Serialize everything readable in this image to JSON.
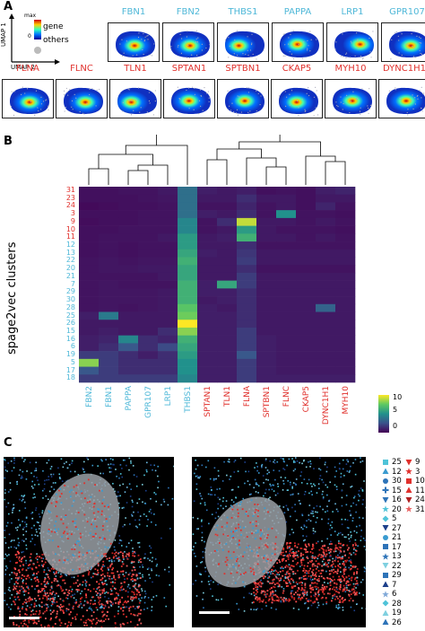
{
  "panel_a": {
    "letter": "A",
    "umap1": "UMAP 1",
    "umap2": "UMAP 2",
    "cb_max": "max",
    "cb_min": "0",
    "legend_gene": "gene",
    "legend_others": "others",
    "row1": [
      {
        "name": "FBN1",
        "color": "#4fb8d8",
        "hot": [
          0.48,
          0.55
        ]
      },
      {
        "name": "FBN2",
        "color": "#4fb8d8",
        "hot": [
          0.5,
          0.55
        ]
      },
      {
        "name": "THBS1",
        "color": "#4fb8d8",
        "hot": [
          0.35,
          0.55
        ]
      },
      {
        "name": "PAPPA",
        "color": "#4fb8d8",
        "hot": [
          0.45,
          0.5
        ]
      },
      {
        "name": "LRP1",
        "color": "#4fb8d8",
        "hot": [
          0.65,
          0.5
        ]
      },
      {
        "name": "GPR107",
        "color": "#4fb8d8",
        "hot": [
          0.55,
          0.55
        ]
      }
    ],
    "row2": [
      {
        "name": "FLNA",
        "color": "#e0302c",
        "hot": [
          0.5,
          0.55
        ]
      },
      {
        "name": "FLNC",
        "color": "#e0302c",
        "hot": [
          0.55,
          0.55
        ]
      },
      {
        "name": "TLN1",
        "color": "#e0302c",
        "hot": [
          0.35,
          0.55
        ]
      },
      {
        "name": "SPTAN1",
        "color": "#e0302c",
        "hot": [
          0.45,
          0.5
        ]
      },
      {
        "name": "SPTBN1",
        "color": "#e0302c",
        "hot": [
          0.5,
          0.5
        ]
      },
      {
        "name": "CKAP5",
        "color": "#e0302c",
        "hot": [
          0.45,
          0.55
        ]
      },
      {
        "name": "MYH10",
        "color": "#e0302c",
        "hot": [
          0.5,
          0.5
        ]
      },
      {
        "name": "DYNC1H1",
        "color": "#e0302c",
        "hot": [
          0.5,
          0.5
        ]
      }
    ]
  },
  "panel_b": {
    "letter": "B",
    "ylabel": "spage2vec clusters",
    "colorbar_ticks": [
      "10",
      "5",
      "0"
    ],
    "chart_data": {
      "type": "heatmap",
      "columns": [
        {
          "name": "FBN2",
          "group": "cyan"
        },
        {
          "name": "FBN1",
          "group": "cyan"
        },
        {
          "name": "PAPPA",
          "group": "cyan"
        },
        {
          "name": "GPR107",
          "group": "cyan"
        },
        {
          "name": "LRP1",
          "group": "cyan"
        },
        {
          "name": "THBS1",
          "group": "cyan"
        },
        {
          "name": "SPTAN1",
          "group": "red"
        },
        {
          "name": "TLN1",
          "group": "red"
        },
        {
          "name": "FLNA",
          "group": "red"
        },
        {
          "name": "SPTBN1",
          "group": "red"
        },
        {
          "name": "FLNC",
          "group": "red"
        },
        {
          "name": "CKAP5",
          "group": "red"
        },
        {
          "name": "DYNC1H1",
          "group": "red"
        },
        {
          "name": "MYH10",
          "group": "red"
        }
      ],
      "rows": [
        {
          "name": "31",
          "group": "red"
        },
        {
          "name": "23",
          "group": "red"
        },
        {
          "name": "24",
          "group": "red"
        },
        {
          "name": "3",
          "group": "red"
        },
        {
          "name": "9",
          "group": "red"
        },
        {
          "name": "10",
          "group": "red"
        },
        {
          "name": "11",
          "group": "red"
        },
        {
          "name": "12",
          "group": "cyan"
        },
        {
          "name": "13",
          "group": "cyan"
        },
        {
          "name": "22",
          "group": "cyan"
        },
        {
          "name": "20",
          "group": "cyan"
        },
        {
          "name": "21",
          "group": "cyan"
        },
        {
          "name": "7",
          "group": "cyan"
        },
        {
          "name": "29",
          "group": "cyan"
        },
        {
          "name": "30",
          "group": "cyan"
        },
        {
          "name": "28",
          "group": "cyan"
        },
        {
          "name": "25",
          "group": "cyan"
        },
        {
          "name": "26",
          "group": "cyan"
        },
        {
          "name": "15",
          "group": "cyan"
        },
        {
          "name": "16",
          "group": "cyan"
        },
        {
          "name": "6",
          "group": "cyan"
        },
        {
          "name": "19",
          "group": "cyan"
        },
        {
          "name": "5",
          "group": "cyan"
        },
        {
          "name": "17",
          "group": "cyan"
        },
        {
          "name": "18",
          "group": "cyan"
        }
      ],
      "values": [
        [
          0.5,
          0.5,
          0.6,
          0.6,
          0.8,
          4.0,
          1.0,
          0.8,
          1.0,
          0.5,
          0.6,
          0.5,
          1.0,
          1.2
        ],
        [
          0.5,
          0.5,
          0.5,
          0.6,
          0.7,
          4.0,
          0.8,
          0.8,
          1.5,
          0.8,
          0.8,
          0.5,
          0.8,
          0.8
        ],
        [
          0.3,
          0.4,
          0.5,
          0.5,
          0.6,
          4.0,
          0.6,
          0.6,
          1.2,
          0.6,
          0.8,
          0.5,
          1.2,
          0.6
        ],
        [
          0.5,
          0.5,
          0.5,
          0.6,
          0.6,
          4.0,
          1.0,
          0.8,
          1.5,
          0.6,
          5.5,
          0.6,
          0.6,
          0.5
        ],
        [
          0.4,
          0.5,
          0.5,
          0.6,
          0.6,
          5.0,
          0.6,
          1.5,
          10.0,
          0.8,
          0.8,
          0.6,
          0.8,
          0.6
        ],
        [
          0.5,
          0.5,
          0.6,
          0.6,
          0.6,
          5.0,
          0.6,
          0.8,
          6.0,
          0.8,
          0.6,
          0.6,
          0.6,
          0.5
        ],
        [
          0.5,
          0.6,
          0.6,
          0.6,
          0.8,
          6.0,
          0.8,
          1.0,
          7.0,
          0.8,
          0.8,
          0.6,
          0.8,
          0.6
        ],
        [
          0.5,
          0.6,
          0.5,
          0.6,
          0.6,
          6.0,
          0.8,
          0.8,
          1.5,
          0.6,
          0.6,
          0.6,
          0.6,
          0.6
        ],
        [
          0.5,
          0.6,
          0.5,
          0.6,
          0.6,
          6.5,
          1.0,
          0.8,
          1.8,
          0.8,
          0.8,
          0.8,
          0.8,
          0.8
        ],
        [
          0.6,
          0.7,
          0.6,
          0.7,
          0.7,
          7.0,
          0.8,
          0.8,
          2.0,
          0.8,
          0.8,
          0.8,
          0.8,
          0.8
        ],
        [
          0.6,
          0.7,
          0.7,
          0.8,
          0.8,
          6.5,
          0.8,
          0.8,
          1.5,
          0.6,
          0.6,
          0.6,
          0.6,
          0.6
        ],
        [
          0.6,
          0.6,
          0.6,
          0.6,
          0.8,
          6.5,
          0.8,
          0.8,
          2.0,
          0.8,
          0.8,
          0.8,
          0.8,
          0.8
        ],
        [
          0.6,
          0.7,
          0.6,
          0.6,
          0.6,
          7.0,
          1.0,
          6.5,
          2.0,
          0.8,
          0.8,
          0.8,
          0.8,
          0.8
        ],
        [
          0.6,
          0.7,
          0.7,
          0.7,
          0.8,
          7.0,
          1.0,
          1.0,
          1.5,
          0.8,
          0.8,
          0.8,
          0.8,
          0.8
        ],
        [
          0.6,
          0.7,
          0.7,
          0.7,
          0.8,
          7.0,
          0.8,
          1.0,
          1.5,
          0.8,
          0.8,
          0.8,
          0.8,
          0.8
        ],
        [
          0.6,
          0.7,
          0.6,
          0.7,
          0.8,
          8.0,
          1.0,
          0.8,
          1.5,
          0.8,
          0.8,
          0.8,
          3.5,
          0.8
        ],
        [
          1.0,
          4.5,
          0.8,
          0.8,
          0.8,
          8.5,
          1.0,
          1.0,
          1.5,
          0.8,
          0.8,
          0.8,
          0.8,
          0.8
        ],
        [
          0.8,
          0.8,
          0.8,
          0.8,
          0.8,
          11.0,
          1.0,
          1.0,
          1.5,
          0.8,
          0.8,
          0.8,
          0.8,
          0.8
        ],
        [
          0.8,
          1.0,
          0.8,
          0.8,
          1.5,
          9.0,
          1.0,
          1.0,
          2.0,
          0.8,
          0.8,
          0.8,
          0.8,
          0.8
        ],
        [
          1.0,
          1.2,
          5.0,
          1.5,
          1.2,
          7.0,
          1.0,
          1.0,
          2.0,
          1.0,
          0.8,
          0.8,
          0.8,
          0.8
        ],
        [
          1.0,
          1.5,
          3.0,
          1.5,
          2.5,
          6.5,
          1.0,
          1.0,
          2.0,
          1.0,
          0.8,
          0.8,
          0.8,
          0.8
        ],
        [
          2.0,
          2.0,
          1.5,
          1.0,
          1.5,
          6.0,
          1.0,
          1.0,
          3.0,
          1.0,
          0.8,
          0.8,
          0.8,
          0.8
        ],
        [
          9.0,
          2.0,
          1.5,
          1.5,
          1.5,
          5.5,
          1.0,
          1.0,
          2.0,
          1.0,
          0.8,
          0.8,
          0.8,
          0.8
        ],
        [
          3.0,
          2.0,
          1.5,
          1.5,
          1.5,
          5.5,
          1.0,
          1.0,
          2.0,
          1.0,
          0.8,
          0.8,
          0.8,
          0.8
        ],
        [
          2.0,
          2.0,
          2.0,
          2.0,
          2.0,
          5.0,
          1.0,
          1.0,
          2.0,
          1.0,
          1.0,
          1.0,
          1.0,
          1.0
        ]
      ],
      "vmin": 0,
      "vmax": 11,
      "colormap": "viridis"
    }
  },
  "panel_c": {
    "letter": "C",
    "legend": [
      {
        "label": "25",
        "shape": "square",
        "color": "#4fc3d8"
      },
      {
        "label": "12",
        "shape": "tri-up",
        "color": "#3a9bd0"
      },
      {
        "label": "30",
        "shape": "circle",
        "color": "#2d73b8"
      },
      {
        "label": "15",
        "shape": "plus",
        "color": "#2d73b8"
      },
      {
        "label": "16",
        "shape": "tri-down",
        "color": "#2d73b8"
      },
      {
        "label": "20",
        "shape": "star",
        "color": "#4fc3d8"
      },
      {
        "label": "5",
        "shape": "diamond",
        "color": "#4fc3d8"
      },
      {
        "label": "27",
        "shape": "tri-down",
        "color": "#1c3f8a"
      },
      {
        "label": "21",
        "shape": "circle",
        "color": "#3a9bd0"
      },
      {
        "label": "17",
        "shape": "square",
        "color": "#2d73b8"
      },
      {
        "label": "13",
        "shape": "star",
        "color": "#2d73b8"
      },
      {
        "label": "22",
        "shape": "tri-down",
        "color": "#7fd0e0"
      },
      {
        "label": "29",
        "shape": "square",
        "color": "#2d73b8"
      },
      {
        "label": "7",
        "shape": "tri-up",
        "color": "#1c3f8a"
      },
      {
        "label": "6",
        "shape": "star",
        "color": "#7fa8d8"
      },
      {
        "label": "28",
        "shape": "diamond",
        "color": "#4fc3d8"
      },
      {
        "label": "19",
        "shape": "tri-up",
        "color": "#7fd0e0"
      },
      {
        "label": "26",
        "shape": "tri-up",
        "color": "#2d73b8"
      },
      {
        "label": "9",
        "shape": "tri-down",
        "color": "#e0302c"
      },
      {
        "label": "3",
        "shape": "star",
        "color": "#e0302c"
      },
      {
        "label": "10",
        "shape": "square",
        "color": "#e0302c"
      },
      {
        "label": "11",
        "shape": "tri-up",
        "color": "#e0302c"
      },
      {
        "label": "24",
        "shape": "tri-down",
        "color": "#b02020"
      },
      {
        "label": "31",
        "shape": "star",
        "color": "#e86060"
      }
    ]
  }
}
